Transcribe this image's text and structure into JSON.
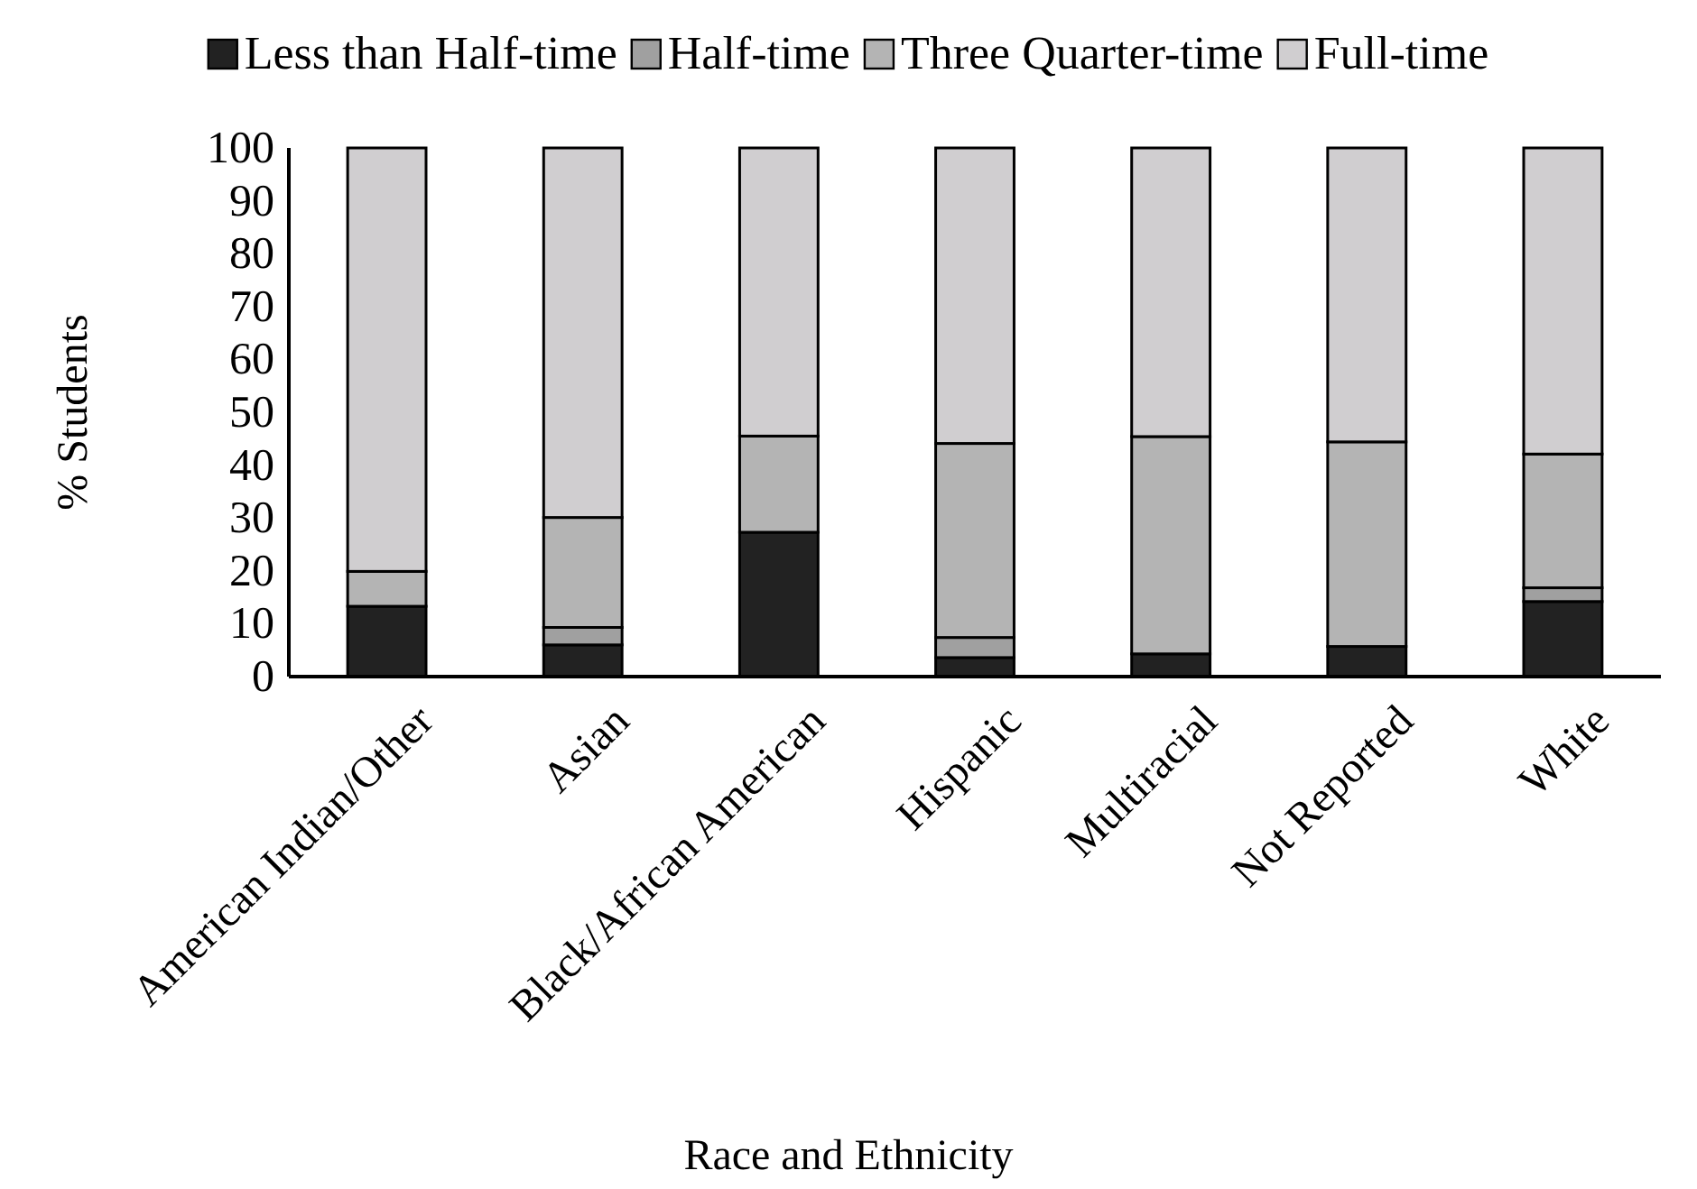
{
  "chart_data": {
    "type": "bar",
    "stacked": true,
    "xlabel": "Race and Ethnicity",
    "ylabel": "% Students",
    "categories": [
      "American Indian/Other",
      "Asian",
      "Black/African American",
      "Hispanic",
      "Multiracial",
      "Not Reported",
      "White"
    ],
    "series": [
      {
        "name": "Less than Half-time",
        "color": "#222222",
        "values": [
          13.3,
          6.0,
          27.3,
          3.6,
          4.3,
          5.7,
          14.2
        ]
      },
      {
        "name": "Half-time",
        "color": "#a0a0a0",
        "values": [
          0,
          3.3,
          0,
          3.8,
          0,
          0,
          2.6
        ]
      },
      {
        "name": "Three Quarter-time",
        "color": "#b4b4b4",
        "values": [
          6.6,
          20.8,
          18.2,
          36.7,
          41.1,
          38.7,
          25.3
        ]
      },
      {
        "name": "Full-time",
        "color": "#d0ced0",
        "values": [
          80.1,
          69.9,
          54.5,
          55.9,
          54.6,
          55.6,
          57.9
        ]
      }
    ],
    "ylim": [
      0,
      100
    ],
    "yticks": [
      0,
      10,
      20,
      30,
      40,
      50,
      60,
      70,
      80,
      90,
      100
    ],
    "grid": false,
    "legend": "top"
  }
}
